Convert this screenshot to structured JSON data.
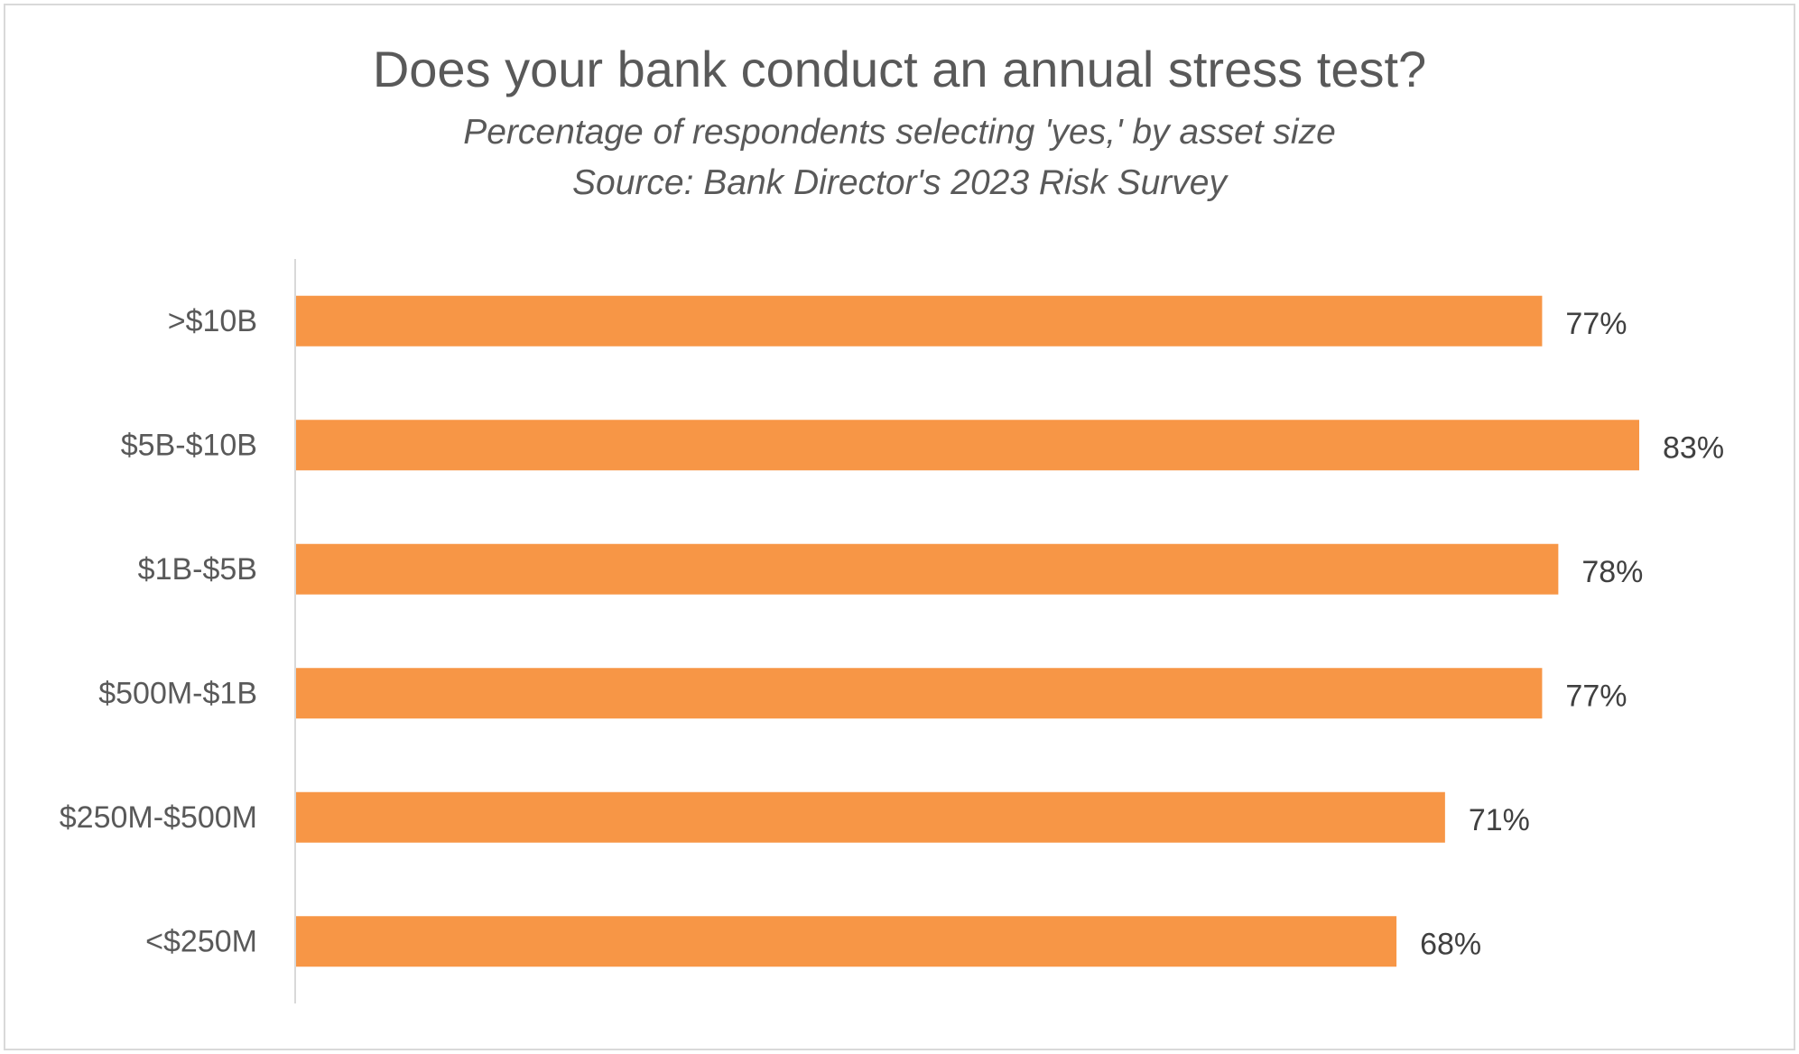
{
  "chart_data": {
    "type": "bar",
    "orientation": "horizontal",
    "title": "Does your bank conduct an annual stress test?",
    "subtitle": "Percentage of respondents selecting 'yes,' by asset size",
    "source": "Source: Bank Director's 2023 Risk Survey",
    "categories": [
      ">$10B",
      "$5B-$10B",
      "$1B-$5B",
      "$500M-$1B",
      "$250M-$500M",
      "<$250M"
    ],
    "values": [
      77,
      83,
      78,
      77,
      71,
      68
    ],
    "value_labels": [
      "77%",
      "83%",
      "78%",
      "77%",
      "71%",
      "68%"
    ],
    "value_unit": "%",
    "xlim": [
      0,
      83
    ],
    "grid": false,
    "legend": "none",
    "bar_color": "#F79646"
  }
}
